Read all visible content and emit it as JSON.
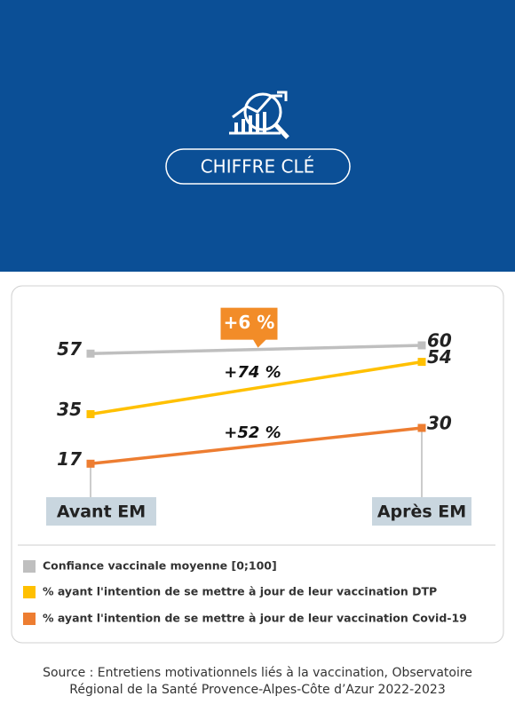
{
  "header": {
    "title": "CHIFFRE CLÉ"
  },
  "chart_data": {
    "type": "line",
    "categories": [
      "Avant EM",
      "Après EM"
    ],
    "series": [
      {
        "name": "Confiance vaccinale moyenne [0;100]",
        "color": "#bfbfbf",
        "values": [
          57,
          60
        ]
      },
      {
        "name": "% ayant l'intention de se mettre à jour de leur vaccination DTP",
        "color": "#ffc000",
        "values": [
          35,
          54
        ]
      },
      {
        "name": "% ayant l'intention de se mettre à jour de leur vaccination Covid-19",
        "color": "#ed7d31",
        "values": [
          17,
          30
        ]
      }
    ],
    "annotations": [
      "+6 %",
      "+74 %",
      "+52 %"
    ],
    "ylim": [
      0,
      80
    ]
  },
  "source": [
    "Source : Entretiens motivationnels liés à la vaccination, Observatoire",
    "Régional de la Santé Provence-Alpes-Côte d’Azur 2022-2023"
  ]
}
